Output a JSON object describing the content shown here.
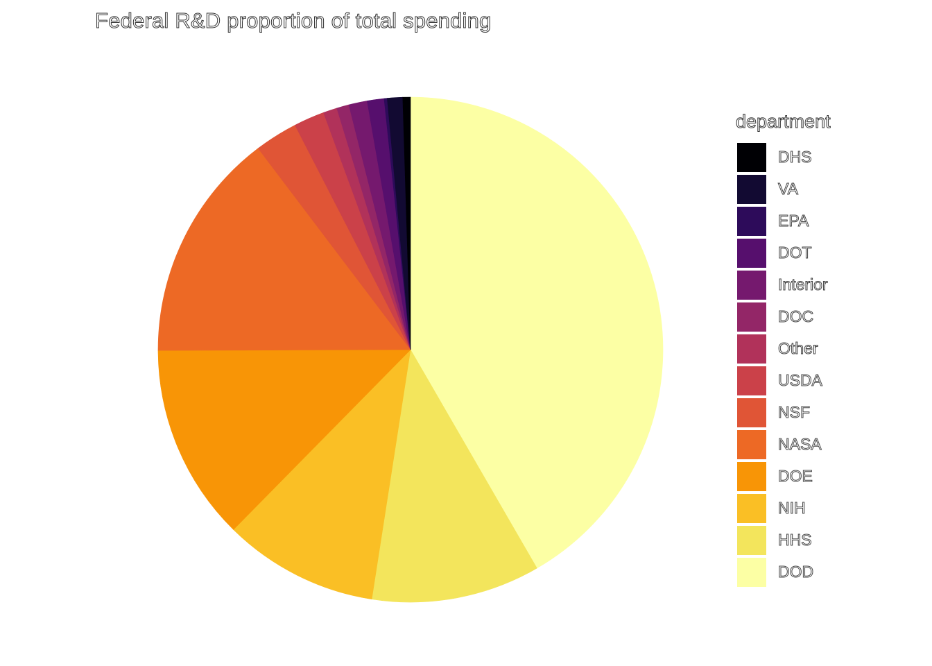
{
  "chart_data": {
    "type": "pie",
    "title": "Federal R&D proportion of total spending",
    "legend_title": "department",
    "legend_position": "right",
    "unit": "share",
    "slices": [
      {
        "label": "DOD",
        "value": 42.4,
        "color": "#FCFFA4"
      },
      {
        "label": "HHS",
        "value": 11.0,
        "color": "#F3E55C"
      },
      {
        "label": "NIH",
        "value": 10.1,
        "color": "#FABF25"
      },
      {
        "label": "DOE",
        "value": 12.8,
        "color": "#F89506"
      },
      {
        "label": "NASA",
        "value": 15.0,
        "color": "#ED6925"
      },
      {
        "label": "NSF",
        "value": 2.8,
        "color": "#E05536"
      },
      {
        "label": "USDA",
        "value": 2.0,
        "color": "#CB4149"
      },
      {
        "label": "Other",
        "value": 0.9,
        "color": "#B1325A"
      },
      {
        "label": "DOC",
        "value": 0.8,
        "color": "#932667"
      },
      {
        "label": "Interior",
        "value": 1.2,
        "color": "#75196E"
      },
      {
        "label": "DOT",
        "value": 1.1,
        "color": "#560F6D"
      },
      {
        "label": "EPA",
        "value": 0.2,
        "color": "#2D0B5A"
      },
      {
        "label": "VA",
        "value": 1.0,
        "color": "#120A32"
      },
      {
        "label": "DHS",
        "value": 0.5,
        "color": "#000004"
      }
    ],
    "legend_order": [
      "DHS",
      "VA",
      "EPA",
      "DOT",
      "Interior",
      "DOC",
      "Other",
      "USDA",
      "NSF",
      "NASA",
      "DOE",
      "NIH",
      "HHS",
      "DOD"
    ]
  }
}
